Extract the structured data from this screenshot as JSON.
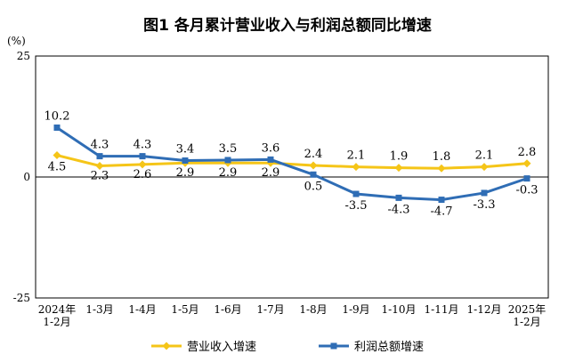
{
  "chart_data": {
    "type": "line",
    "title": "图1  各月累计营业收入与利润总额同比增速",
    "unit_label": "(%)",
    "categories": [
      [
        "2024年",
        "1-2月"
      ],
      [
        "1-3月"
      ],
      [
        "1-4月"
      ],
      [
        "1-5月"
      ],
      [
        "1-6月"
      ],
      [
        "1-7月"
      ],
      [
        "1-8月"
      ],
      [
        "1-9月"
      ],
      [
        "1-10月"
      ],
      [
        "1-11月"
      ],
      [
        "1-12月"
      ],
      [
        "2025年",
        "1-2月"
      ]
    ],
    "ylim": [
      -25,
      25
    ],
    "yticks": [
      "25",
      "0",
      "-25"
    ],
    "series": [
      {
        "name": "营业收入增速",
        "color": "#f5c518",
        "marker": "diamond",
        "values": [
          4.5,
          2.3,
          2.6,
          2.9,
          2.9,
          2.9,
          2.4,
          2.1,
          1.9,
          1.8,
          2.1,
          2.8
        ],
        "labels": [
          "4.5",
          "2.3",
          "2.6",
          "2.9",
          "2.9",
          "2.9",
          "2.4",
          "2.1",
          "1.9",
          "1.8",
          "2.1",
          "2.8"
        ]
      },
      {
        "name": "利润总额增速",
        "color": "#2f6db5",
        "marker": "square",
        "values": [
          10.2,
          4.3,
          4.3,
          3.4,
          3.5,
          3.6,
          0.5,
          -3.5,
          -4.3,
          -4.7,
          -3.3,
          -0.3
        ],
        "labels": [
          "10.2",
          "4.3",
          "4.3",
          "3.4",
          "3.5",
          "3.6",
          "0.5",
          "-3.5",
          "-4.3",
          "-4.7",
          "-3.3",
          "-0.3"
        ]
      }
    ],
    "legend": "bottom-center",
    "grid": false
  }
}
